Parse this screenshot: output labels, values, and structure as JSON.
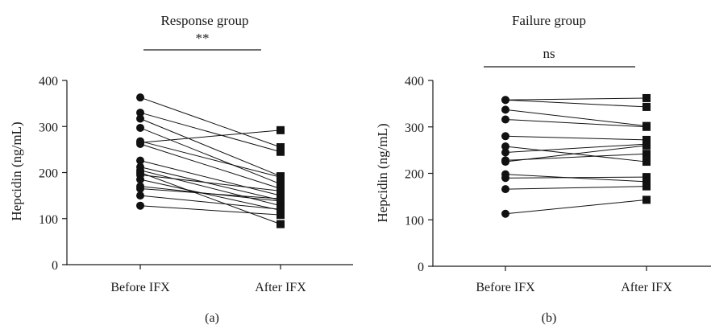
{
  "chart_data": [
    {
      "type": "line",
      "title": "Response group",
      "significance": "**",
      "caption": "(a)",
      "ylabel": "Hepcidin (ng/mL)",
      "categories": [
        "Before IFX",
        "After IFX"
      ],
      "ylim": [
        0,
        400
      ],
      "yticks": [
        "0",
        "100",
        "200",
        "300",
        "400"
      ],
      "series": [
        {
          "values": [
            363,
            255
          ]
        },
        {
          "values": [
            330,
            245
          ]
        },
        {
          "values": [
            317,
            192
          ]
        },
        {
          "values": [
            297,
            175
          ]
        },
        {
          "values": [
            268,
            190
          ]
        },
        {
          "values": [
            262,
            165
          ]
        },
        {
          "values": [
            226,
            150
          ]
        },
        {
          "values": [
            212,
            140
          ]
        },
        {
          "values": [
            205,
            128
          ]
        },
        {
          "values": [
            195,
            160
          ]
        },
        {
          "values": [
            185,
            118
          ]
        },
        {
          "values": [
            170,
            138
          ]
        },
        {
          "values": [
            165,
            143
          ]
        },
        {
          "values": [
            150,
            120
          ]
        },
        {
          "values": [
            128,
            108
          ]
        },
        {
          "values": [
            200,
            88
          ]
        },
        {
          "values": [
            265,
            292
          ]
        }
      ]
    },
    {
      "type": "line",
      "title": "Failure group",
      "significance": "ns",
      "caption": "(b)",
      "ylabel": "Hepcidin (ng/mL)",
      "categories": [
        "Before IFX",
        "After IFX"
      ],
      "ylim": [
        0,
        400
      ],
      "yticks": [
        "0",
        "100",
        "200",
        "300",
        "400"
      ],
      "series": [
        {
          "values": [
            358,
            362
          ]
        },
        {
          "values": [
            358,
            343
          ]
        },
        {
          "values": [
            337,
            302
          ]
        },
        {
          "values": [
            316,
            300
          ]
        },
        {
          "values": [
            280,
            272
          ]
        },
        {
          "values": [
            258,
            225
          ]
        },
        {
          "values": [
            245,
            263
          ]
        },
        {
          "values": [
            228,
            242
          ]
        },
        {
          "values": [
            225,
            260
          ]
        },
        {
          "values": [
            198,
            182
          ]
        },
        {
          "values": [
            190,
            192
          ]
        },
        {
          "values": [
            166,
            172
          ]
        },
        {
          "values": [
            113,
            143
          ]
        }
      ]
    }
  ]
}
